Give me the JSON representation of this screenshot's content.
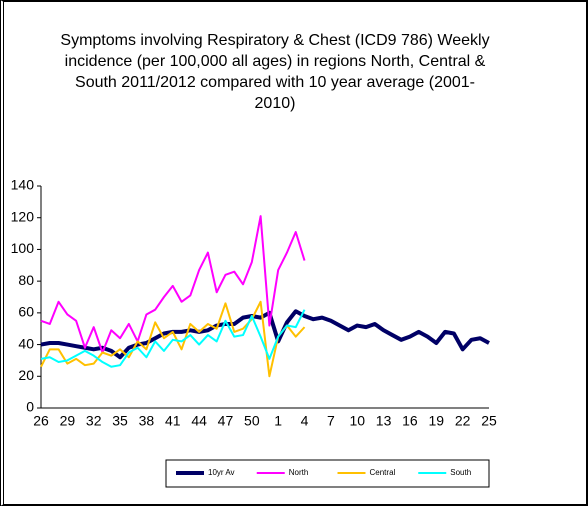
{
  "chart_data": {
    "type": "line",
    "title": "Symptoms involving Respiratory & Chest (ICD9 786) Weekly incidence (per 100,000 all ages) in regions North, Central & South 2011/2012 compared with 10 year average (2001-2010)",
    "categories": [
      "26",
      null,
      null,
      "29",
      null,
      null,
      "32",
      null,
      null,
      "35",
      null,
      null,
      "38",
      null,
      null,
      "41",
      null,
      null,
      "44",
      null,
      null,
      "47",
      null,
      null,
      "50",
      null,
      null,
      "1",
      null,
      null,
      "4",
      null,
      null,
      "7",
      null,
      null,
      "10",
      null,
      null,
      "13",
      null,
      null,
      "16",
      null,
      null,
      "19",
      null,
      null,
      "22",
      null,
      null,
      "25"
    ],
    "series": [
      {
        "name": "10yr Av",
        "color": "#000066",
        "values": [
          40,
          41,
          41,
          40,
          39,
          38,
          37,
          38,
          36,
          32,
          38,
          40,
          41,
          44,
          47,
          48,
          48,
          49,
          48,
          49,
          52,
          53,
          53,
          57,
          58,
          57,
          60,
          42,
          54,
          61,
          58,
          56,
          57,
          55,
          52,
          49,
          52,
          51,
          53,
          49,
          46,
          43,
          45,
          48,
          45,
          41,
          48,
          47,
          37,
          43,
          44,
          41
        ]
      },
      {
        "name": "North",
        "color": "#ff00ff",
        "values": [
          55,
          53,
          67,
          59,
          55,
          38,
          51,
          35,
          49,
          44,
          53,
          42,
          59,
          62,
          70,
          77,
          67,
          71,
          87,
          98,
          73,
          84,
          86,
          78,
          92,
          121,
          52,
          87,
          98,
          111,
          93,
          null,
          null,
          null,
          null,
          null,
          null,
          null,
          null,
          null,
          null,
          null,
          null,
          null,
          null,
          null,
          null,
          null,
          null,
          null,
          null,
          null
        ]
      },
      {
        "name": "Central",
        "color": "#ffc000",
        "values": [
          26,
          37,
          37,
          28,
          31,
          27,
          28,
          35,
          33,
          37,
          32,
          42,
          37,
          54,
          44,
          48,
          37,
          53,
          48,
          53,
          50,
          66,
          48,
          50,
          56,
          67,
          20,
          45,
          52,
          45,
          51,
          null,
          null,
          null,
          null,
          null,
          null,
          null,
          null,
          null,
          null,
          null,
          null,
          null,
          null,
          null,
          null,
          null,
          null,
          null,
          null,
          null
        ]
      },
      {
        "name": "South",
        "color": "#00ffff",
        "values": [
          31,
          32,
          29,
          30,
          33,
          36,
          33,
          29,
          26,
          27,
          35,
          38,
          32,
          42,
          36,
          43,
          42,
          46,
          40,
          46,
          42,
          55,
          45,
          46,
          58,
          45,
          31,
          45,
          52,
          51,
          62,
          null,
          null,
          null,
          null,
          null,
          null,
          null,
          null,
          null,
          null,
          null,
          null,
          null,
          null,
          null,
          null,
          null,
          null,
          null,
          null,
          null
        ]
      }
    ],
    "ylim": [
      0,
      140
    ],
    "yticks": [
      0,
      20,
      40,
      60,
      80,
      100,
      120,
      140
    ],
    "grid": false
  }
}
